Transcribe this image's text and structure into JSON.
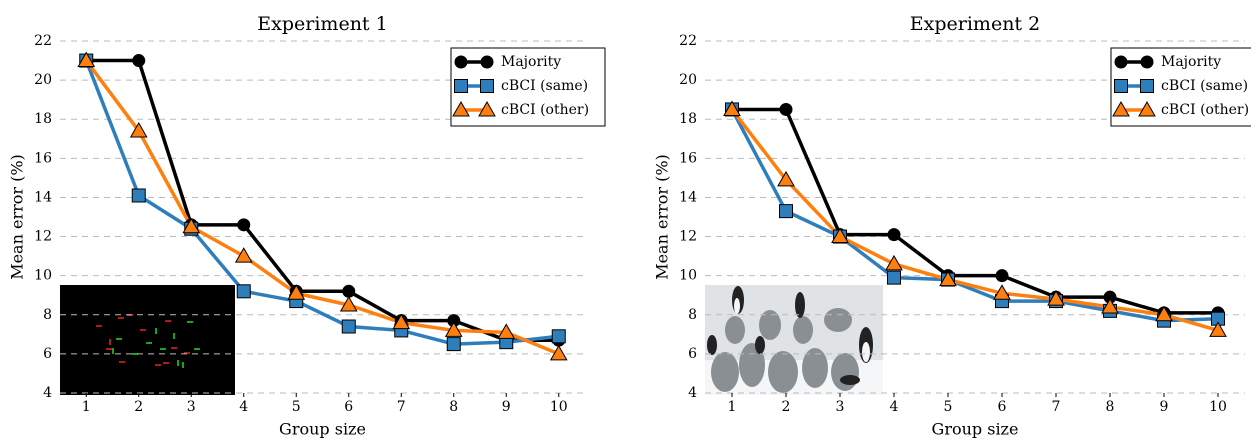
{
  "chart_data": [
    {
      "type": "line",
      "title": "Experiment 1",
      "xlabel": "Group size",
      "ylabel": "Mean error (%)",
      "x": [
        1,
        2,
        3,
        4,
        5,
        6,
        7,
        8,
        9,
        10
      ],
      "xlim": [
        0.5,
        10.5
      ],
      "xticks": [
        1,
        2,
        3,
        4,
        5,
        6,
        7,
        8,
        9,
        10
      ],
      "ylim": [
        4,
        22
      ],
      "yticks": [
        4,
        6,
        8,
        10,
        12,
        14,
        16,
        18,
        20,
        22
      ],
      "grid": true,
      "legend": "upper right",
      "series": [
        {
          "name": "Majority",
          "color": "#000000",
          "marker": "circle",
          "values": [
            21,
            21,
            12.6,
            12.6,
            9.2,
            9.2,
            7.7,
            7.7,
            6.7,
            6.7
          ]
        },
        {
          "name": "cBCI (same)",
          "color": "#2e7ebc",
          "marker": "square",
          "values": [
            21,
            14.1,
            12.4,
            9.2,
            8.7,
            7.4,
            7.2,
            6.5,
            6.6,
            6.9
          ]
        },
        {
          "name": "cBCI (other)",
          "color": "#ff7f0e",
          "marker": "triangle",
          "values": [
            21,
            17.4,
            12.5,
            11.0,
            9.1,
            8.5,
            7.6,
            7.2,
            7.1,
            6.0
          ]
        }
      ]
    },
    {
      "type": "line",
      "title": "Experiment 2",
      "xlabel": "Group size",
      "ylabel": "Mean error (%)",
      "x": [
        1,
        2,
        3,
        4,
        5,
        6,
        7,
        8,
        9,
        10
      ],
      "xlim": [
        0.5,
        10.5
      ],
      "xticks": [
        1,
        2,
        3,
        4,
        5,
        6,
        7,
        8,
        9,
        10
      ],
      "ylim": [
        4,
        22
      ],
      "yticks": [
        4,
        6,
        8,
        10,
        12,
        14,
        16,
        18,
        20,
        22
      ],
      "grid": true,
      "legend": "upper right",
      "series": [
        {
          "name": "Majority",
          "color": "#000000",
          "marker": "circle",
          "values": [
            18.5,
            18.5,
            12.1,
            12.1,
            10.0,
            10.0,
            8.9,
            8.9,
            8.1,
            8.1
          ]
        },
        {
          "name": "cBCI (same)",
          "color": "#2e7ebc",
          "marker": "square",
          "values": [
            18.5,
            13.3,
            12.0,
            9.9,
            9.8,
            8.7,
            8.7,
            8.2,
            7.7,
            7.8
          ]
        },
        {
          "name": "cBCI (other)",
          "color": "#ff7f0e",
          "marker": "triangle",
          "values": [
            18.5,
            14.9,
            12.0,
            10.6,
            9.8,
            9.1,
            8.8,
            8.4,
            8.0,
            7.2
          ]
        }
      ]
    }
  ]
}
